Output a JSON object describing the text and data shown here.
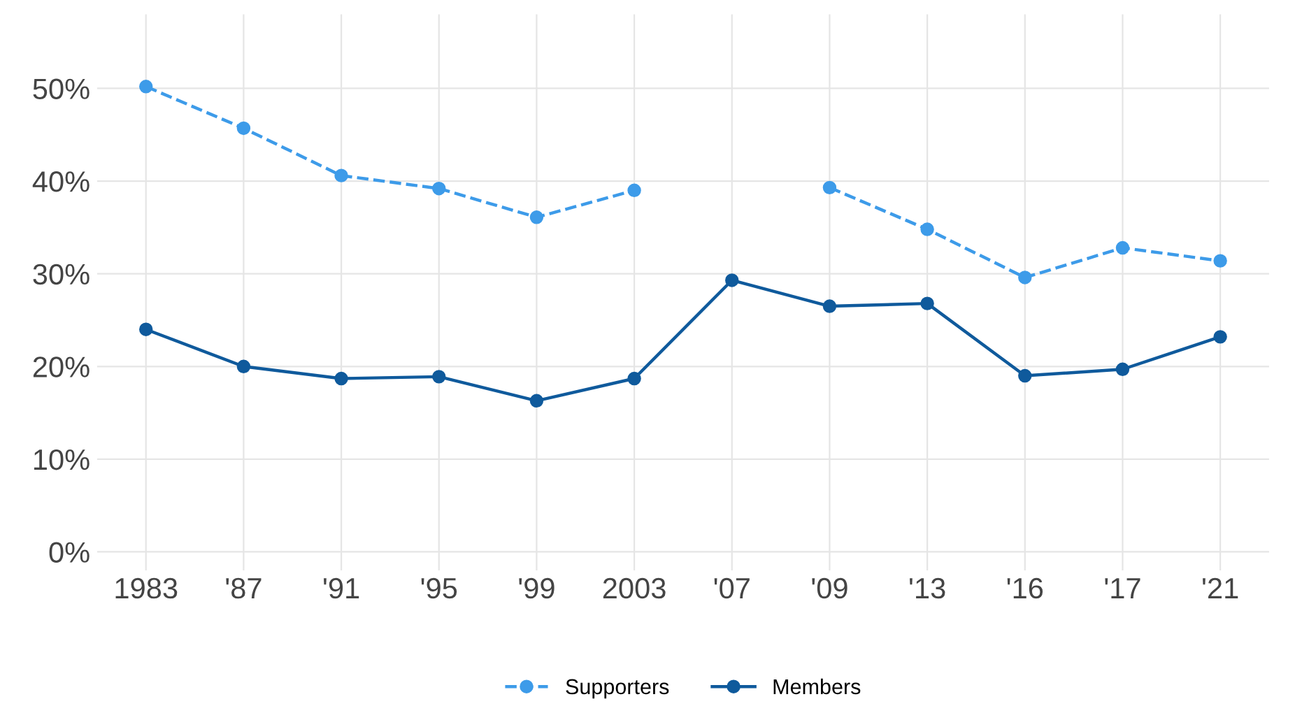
{
  "chart_data": {
    "type": "line",
    "categories": [
      "1983",
      "'87",
      "'91",
      "'95",
      "'99",
      "2003",
      "'07",
      "'09",
      "'13",
      "'16",
      "'17",
      "'21"
    ],
    "series": [
      {
        "name": "Supporters",
        "color": "#3d9be9",
        "line_style": "dashed",
        "values": [
          50.2,
          45.7,
          40.6,
          39.2,
          36.1,
          39.0,
          null,
          39.3,
          34.8,
          29.6,
          32.8,
          31.4
        ]
      },
      {
        "name": "Members",
        "color": "#0f5a9c",
        "line_style": "solid",
        "values": [
          24.0,
          20.0,
          18.7,
          18.9,
          16.3,
          18.7,
          29.3,
          26.5,
          26.8,
          19.0,
          19.7,
          23.2
        ]
      }
    ],
    "ylim": [
      -2,
      58
    ],
    "yticks": [
      {
        "value": 0,
        "label": "0%"
      },
      {
        "value": 10,
        "label": "10%"
      },
      {
        "value": 20,
        "label": "20%"
      },
      {
        "value": 30,
        "label": "30%"
      },
      {
        "value": 40,
        "label": "40%"
      },
      {
        "value": 50,
        "label": "50%"
      }
    ],
    "grid": true,
    "legend": "bottom",
    "marker": "circle"
  }
}
